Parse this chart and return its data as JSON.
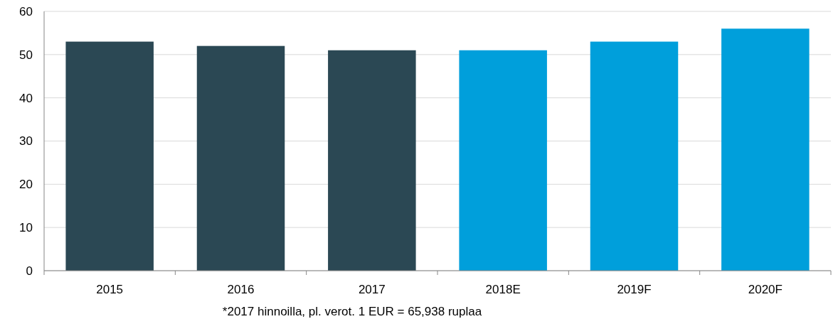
{
  "chart_data": {
    "type": "bar",
    "categories": [
      "2015",
      "2016",
      "2017",
      "2018E",
      "2019F",
      "2020F"
    ],
    "values": [
      53,
      52,
      51,
      51,
      53,
      56
    ],
    "colors": [
      "#2b4854",
      "#2b4854",
      "#2b4854",
      "#009fdb",
      "#009fdb",
      "#009fdb"
    ],
    "ylim": [
      0,
      60
    ],
    "yticks": [
      0,
      10,
      20,
      30,
      40,
      50,
      60
    ],
    "grid": "y",
    "annotations": [
      "*2017 hinnoilla, pl. verot. 1 EUR = 65,938 ruplaa"
    ]
  }
}
